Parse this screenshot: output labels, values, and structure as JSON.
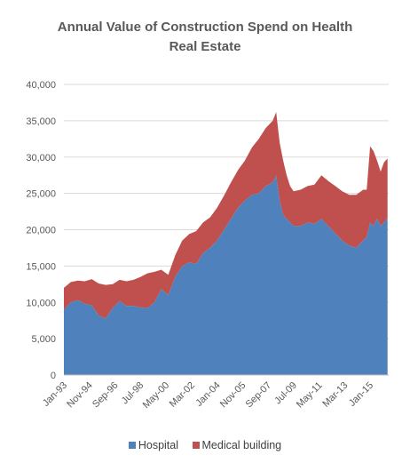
{
  "chart_data": {
    "type": "area",
    "stacked": true,
    "title_lines": [
      "Annual Value of Construction Spend on Health",
      "Real Estate"
    ],
    "xlabel": "",
    "ylabel": "",
    "ylim": [
      0,
      40000
    ],
    "yticks": [
      "0",
      "5,000",
      "10,000",
      "15,000",
      "20,000",
      "25,000",
      "30,000",
      "35,000",
      "40,000"
    ],
    "x_tick_labels": [
      "Jan-93",
      "Nov-94",
      "Sep-96",
      "Jul-98",
      "May-00",
      "Mar-02",
      "Jan-04",
      "Nov-05",
      "Sep-07",
      "Jul-09",
      "May-11",
      "Mar-13",
      "Jan-15"
    ],
    "grid": "horizontal",
    "legend_position": "bottom",
    "x": [
      "1993-01",
      "1993-07",
      "1994-01",
      "1994-07",
      "1995-01",
      "1995-07",
      "1996-01",
      "1996-07",
      "1997-01",
      "1997-07",
      "1998-01",
      "1998-07",
      "1999-01",
      "1999-07",
      "2000-01",
      "2000-07",
      "2001-01",
      "2001-07",
      "2002-01",
      "2002-07",
      "2003-01",
      "2003-07",
      "2004-01",
      "2004-07",
      "2005-01",
      "2005-07",
      "2006-01",
      "2006-07",
      "2007-01",
      "2007-07",
      "2008-01",
      "2008-04",
      "2008-07",
      "2008-10",
      "2009-01",
      "2009-04",
      "2009-07",
      "2010-01",
      "2010-07",
      "2011-01",
      "2011-07",
      "2012-01",
      "2012-07",
      "2013-01",
      "2013-07",
      "2014-01",
      "2014-07",
      "2014-10",
      "2015-01",
      "2015-04",
      "2015-07",
      "2015-10",
      "2016-01",
      "2016-04"
    ],
    "series": [
      {
        "name": "Hospital",
        "color": "#4f81bd",
        "values": [
          9000,
          10000,
          10300,
          9800,
          9600,
          8200,
          7800,
          9200,
          10200,
          9500,
          9500,
          9300,
          9200,
          10000,
          11800,
          11000,
          13500,
          15000,
          15500,
          15300,
          16800,
          17500,
          18500,
          20000,
          21500,
          23000,
          24000,
          24800,
          25000,
          26000,
          26500,
          27500,
          24000,
          22000,
          21500,
          21000,
          20500,
          20500,
          21000,
          20800,
          21500,
          20500,
          19500,
          18500,
          17800,
          17500,
          18500,
          19000,
          21000,
          20500,
          21500,
          20500,
          21000,
          21600
        ]
      },
      {
        "name": "Medical building",
        "color": "#c0504d",
        "values": [
          3000,
          2800,
          2700,
          3100,
          3600,
          4400,
          4600,
          3300,
          2900,
          3400,
          3600,
          4200,
          4800,
          4200,
          2700,
          2800,
          3000,
          3500,
          3900,
          4500,
          4200,
          4200,
          4500,
          4700,
          5000,
          5200,
          5500,
          6500,
          7500,
          8000,
          8500,
          8700,
          8000,
          7500,
          6000,
          5000,
          4800,
          5000,
          5000,
          5400,
          6000,
          6200,
          6500,
          6800,
          7000,
          7300,
          7000,
          6500,
          10500,
          10300,
          8000,
          7500,
          8300,
          8200
        ]
      }
    ],
    "legend": [
      "Hospital",
      "Medical building"
    ]
  }
}
